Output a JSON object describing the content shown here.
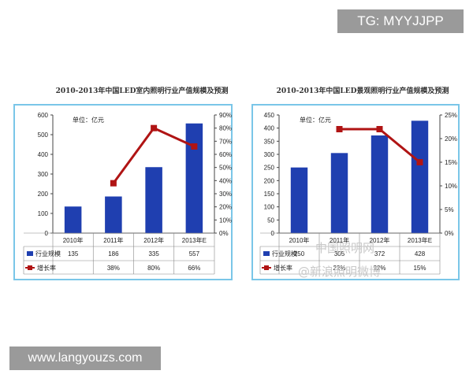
{
  "overlay": {
    "tag_text": "TG: MYYJJPP",
    "site_text": "www.langyouzs.com",
    "watermark_line1": "中国照明网",
    "watermark_line2": "@新浪照明微博"
  },
  "colors": {
    "bar": "#1f3fb0",
    "line": "#b01414",
    "frame": "#7ac6e8"
  },
  "chart_data": [
    {
      "type": "bar",
      "title": "2010-2013年中国LED室内照明行业产值规模及预测",
      "unit_label": "单位：亿元",
      "categories": [
        "2010年",
        "2011年",
        "2012年",
        "2013年E"
      ],
      "ylim": [
        0,
        600
      ],
      "yticks": [
        "0",
        "100",
        "200",
        "300",
        "400",
        "500",
        "600"
      ],
      "y2lim": [
        0,
        90
      ],
      "y2ticks": [
        "0%",
        "10%",
        "20%",
        "30%",
        "40%",
        "50%",
        "60%",
        "70%",
        "80%",
        "90%"
      ],
      "series": [
        {
          "name": "行业规模",
          "values": [
            135,
            186,
            335,
            557
          ]
        },
        {
          "name": "增长率",
          "values": [
            null,
            38,
            80,
            66
          ],
          "axis": "right"
        }
      ],
      "table": [
        [
          "135",
          "186",
          "335",
          "557"
        ],
        [
          "",
          "38%",
          "80%",
          "66%"
        ]
      ]
    },
    {
      "type": "bar",
      "title": "2010-2013年中国LED景观照明行业产值规模及预测",
      "unit_label": "单位：亿元",
      "categories": [
        "2010年",
        "2011年",
        "2012年",
        "2013年E"
      ],
      "ylim": [
        0,
        450
      ],
      "yticks": [
        "0",
        "50",
        "100",
        "150",
        "200",
        "250",
        "300",
        "350",
        "400",
        "450"
      ],
      "y2lim": [
        0,
        25
      ],
      "y2ticks": [
        "0%",
        "5%",
        "10%",
        "15%",
        "20%",
        "25%"
      ],
      "series": [
        {
          "name": "行业规模",
          "values": [
            250,
            305,
            372,
            428
          ]
        },
        {
          "name": "增长率",
          "values": [
            null,
            22,
            22,
            15
          ],
          "axis": "right"
        }
      ],
      "table": [
        [
          "250",
          "305",
          "372",
          "428"
        ],
        [
          "",
          "22%",
          "22%",
          "15%"
        ]
      ]
    }
  ]
}
